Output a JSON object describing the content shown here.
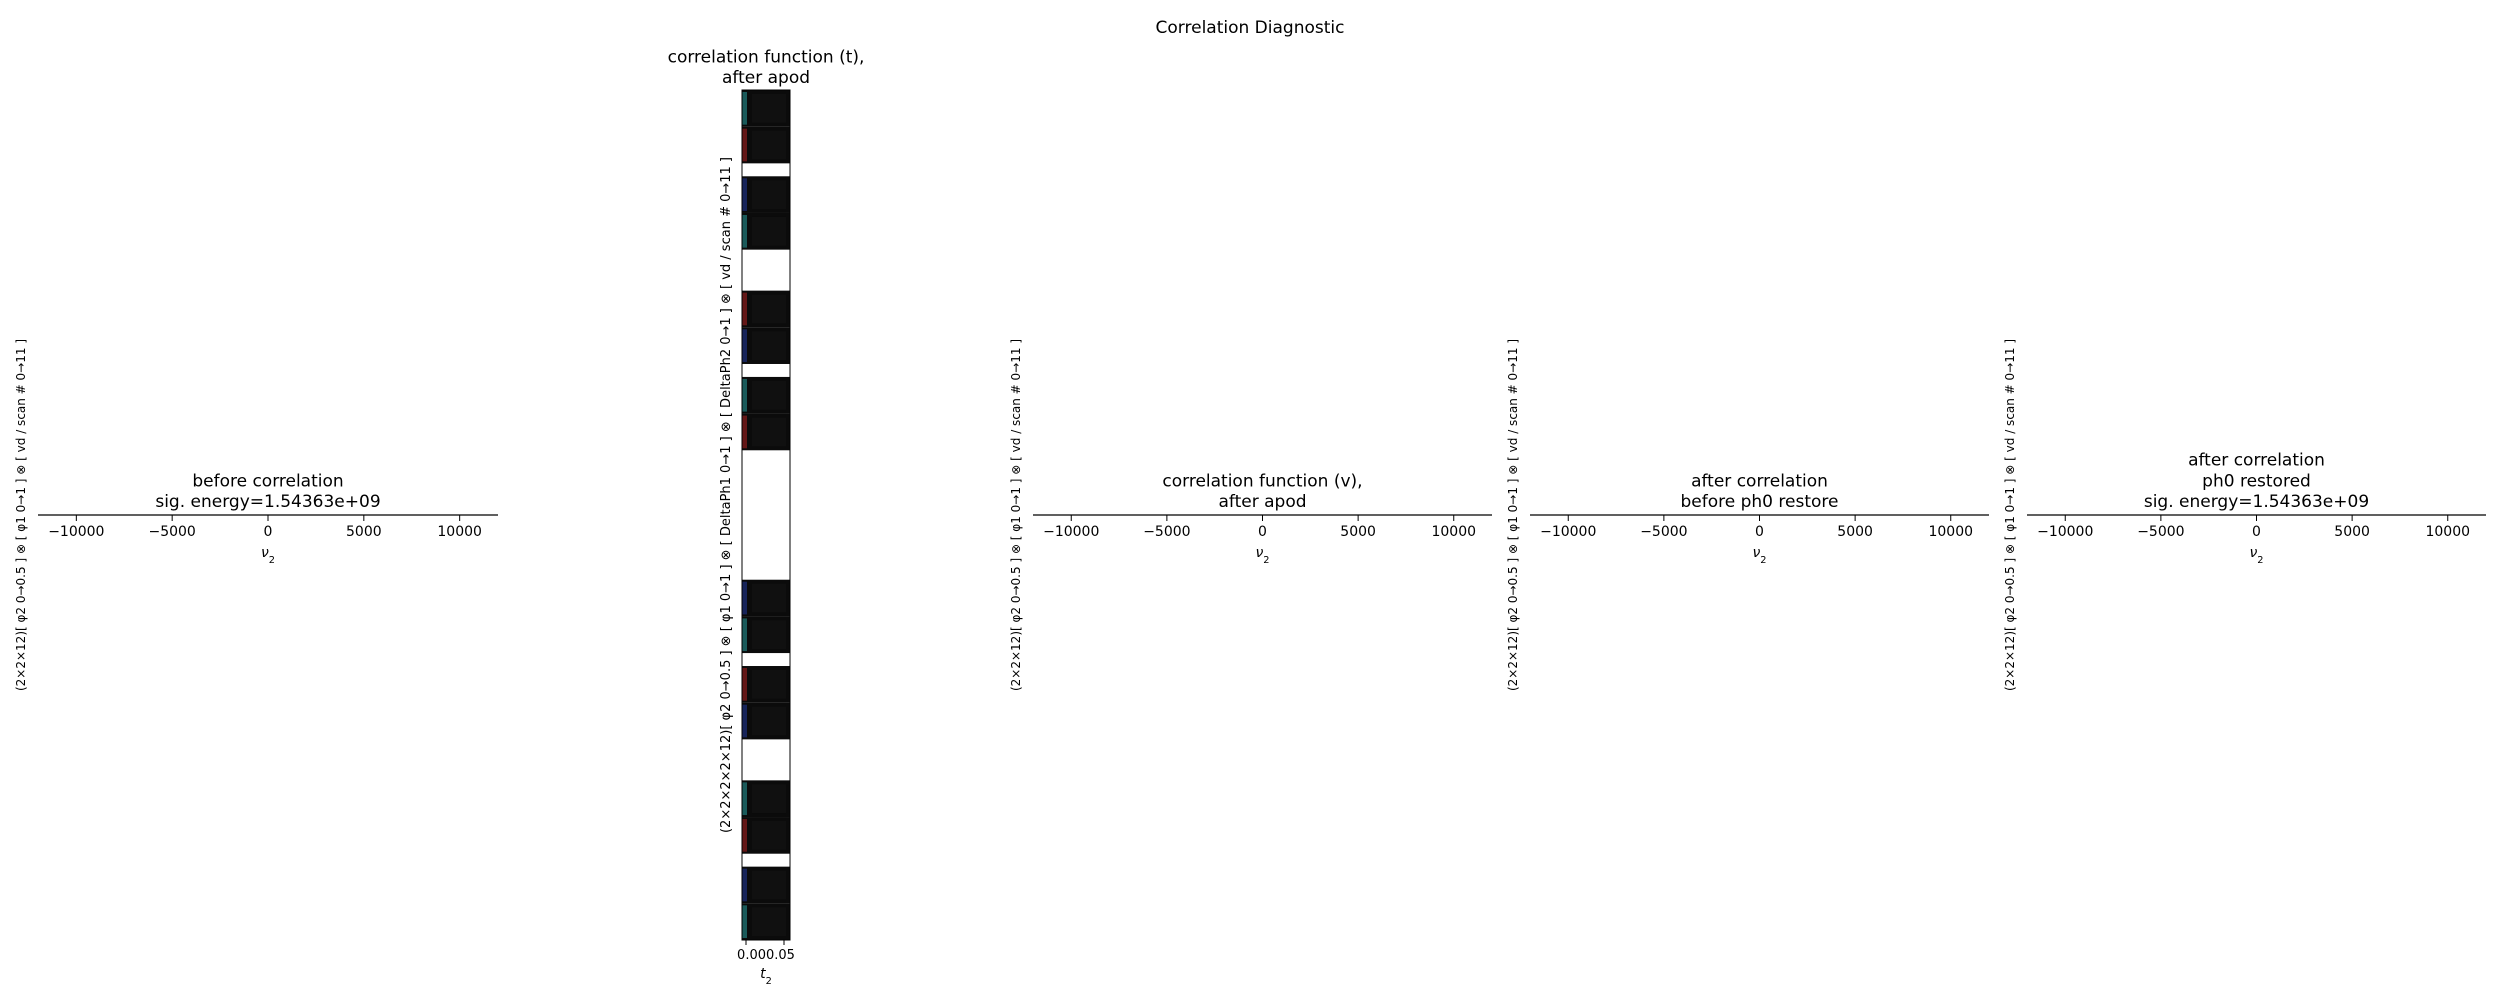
{
  "figure": {
    "suptitle": "Correlation Diagnostic"
  },
  "chart_data": [
    {
      "type": "line",
      "title": "before correlation\nsig. energy=1.54363e+09",
      "xlabel": "ν2",
      "ylabel": "(2×2×12)[ φ2 0→0.5 ] ⊗ [ φ1 0→1 ] ⊗ [ vd / scan # 0→11 ]",
      "xlim": [
        -12000,
        12000
      ],
      "xticks": [
        -10000,
        -5000,
        0,
        5000,
        10000
      ],
      "xticklabels": [
        "−10000",
        "−5000",
        "0",
        "5000",
        "10000"
      ],
      "series": [],
      "grid": false
    },
    {
      "type": "heatmap",
      "title": "correlation function (t),\nafter apod",
      "xlabel": "t2",
      "ylabel": "(2×2×2×2×12)[ φ2 0→0.5 ] ⊗ [ φ1 0→1 ] ⊗ [ DeltaPh1 0→1 ] ⊗ [ DeltaPh2 0→1 ] ⊗ [ vd / scan # 0→11 ]",
      "xticklabels": [
        "0.00",
        "0.05"
      ],
      "blocks": [
        {
          "rows": [
            "strip",
            "strip",
            "sep",
            "strip",
            "strip",
            "blank",
            "strip",
            "strip",
            "sep",
            "strip",
            "strip"
          ]
        },
        {
          "rows": [
            "strip",
            "strip",
            "sep",
            "strip",
            "strip",
            "blank",
            "strip",
            "strip",
            "sep",
            "strip",
            "strip"
          ]
        }
      ],
      "strip_colors": [
        "#0b0b0b",
        "#141414",
        "#1e6e6e",
        "#7a1a1a",
        "#1a2a6e"
      ]
    },
    {
      "type": "line",
      "title": "correlation function (v),\nafter apod",
      "xlabel": "ν2",
      "ylabel": "(2×2×12)[ φ2 0→0.5 ] ⊗ [ φ1 0→1 ] ⊗ [ vd / scan # 0→11 ]",
      "xlim": [
        -12000,
        12000
      ],
      "xticks": [
        -10000,
        -5000,
        0,
        5000,
        10000
      ],
      "xticklabels": [
        "−10000",
        "−5000",
        "0",
        "5000",
        "10000"
      ],
      "series": [],
      "grid": false
    },
    {
      "type": "line",
      "title": "after correlation\nbefore ph0 restore",
      "xlabel": "ν2",
      "ylabel": "(2×2×12)[ φ2 0→0.5 ] ⊗ [ φ1 0→1 ] ⊗ [ vd / scan # 0→11 ]",
      "xlim": [
        -12000,
        12000
      ],
      "xticks": [
        -10000,
        -5000,
        0,
        5000,
        10000
      ],
      "xticklabels": [
        "−10000",
        "−5000",
        "0",
        "5000",
        "10000"
      ],
      "series": [],
      "grid": false
    },
    {
      "type": "line",
      "title": "after correlation\nph0 restored\nsig. energy=1.54363e+09",
      "xlabel": "ν2",
      "ylabel": "(2×2×12)[ φ2 0→0.5 ] ⊗ [ φ1 0→1 ] ⊗ [ vd / scan # 0→11 ]",
      "xlim": [
        -12000,
        12000
      ],
      "xticks": [
        -10000,
        -5000,
        0,
        5000,
        10000
      ],
      "xticklabels": [
        "−10000",
        "−5000",
        "0",
        "5000",
        "10000"
      ],
      "series": [],
      "grid": false
    }
  ]
}
